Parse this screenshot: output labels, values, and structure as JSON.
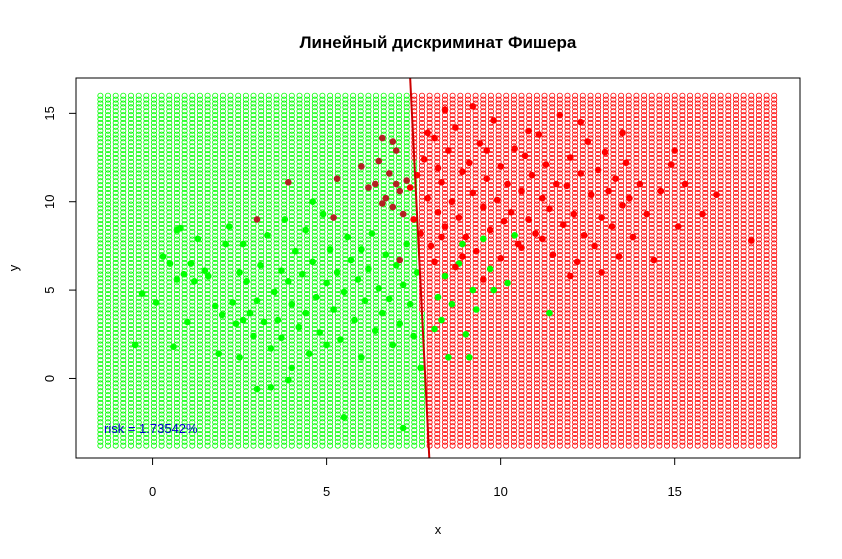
{
  "chart_data": {
    "type": "scatter",
    "title": "Линейный дискриминат Фишера",
    "xlabel": "x",
    "ylabel": "y",
    "xlim": [
      -2.2,
      18.6
    ],
    "ylim": [
      -4.5,
      17.0
    ],
    "xticks": [
      0,
      5,
      10,
      15
    ],
    "yticks": [
      0,
      5,
      10,
      15
    ],
    "grid_x": {
      "from": -1.5,
      "to": 18.0,
      "step": 0.22
    },
    "grid_y": {
      "from": -3.8,
      "to": 16.2,
      "step": 0.22
    },
    "boundary": {
      "x1": 7.4,
      "y1": 17.0,
      "x2": 7.95,
      "y2": -4.5
    },
    "annotation": "risk = 1.73542%",
    "colors": {
      "class1": "#00ff00",
      "class2": "#ff0000",
      "misclassified": "#b22222",
      "annotation": "#0000cd",
      "boundary": "#cc0000"
    },
    "series": [
      {
        "class": 1,
        "color": "#00ff00",
        "points": [
          [
            -0.5,
            1.9
          ],
          [
            -0.3,
            4.8
          ],
          [
            0.1,
            4.3
          ],
          [
            0.3,
            6.9
          ],
          [
            0.5,
            6.5
          ],
          [
            0.6,
            1.8
          ],
          [
            0.7,
            8.4
          ],
          [
            0.7,
            5.6
          ],
          [
            0.8,
            8.5
          ],
          [
            0.9,
            5.9
          ],
          [
            1.0,
            3.2
          ],
          [
            1.1,
            6.5
          ],
          [
            1.2,
            5.5
          ],
          [
            1.3,
            7.9
          ],
          [
            1.5,
            6.1
          ],
          [
            1.6,
            5.8
          ],
          [
            1.8,
            4.1
          ],
          [
            1.9,
            1.4
          ],
          [
            2.0,
            3.6
          ],
          [
            2.1,
            7.6
          ],
          [
            2.2,
            8.6
          ],
          [
            2.3,
            4.3
          ],
          [
            2.4,
            3.1
          ],
          [
            2.5,
            6.0
          ],
          [
            2.5,
            1.2
          ],
          [
            2.6,
            7.6
          ],
          [
            2.7,
            5.5
          ],
          [
            2.8,
            3.7
          ],
          [
            2.9,
            2.4
          ],
          [
            3.0,
            4.4
          ],
          [
            3.0,
            -0.6
          ],
          [
            3.1,
            6.4
          ],
          [
            3.2,
            3.2
          ],
          [
            3.3,
            8.1
          ],
          [
            3.4,
            1.7
          ],
          [
            3.4,
            -0.5
          ],
          [
            3.5,
            4.9
          ],
          [
            3.6,
            3.3
          ],
          [
            3.7,
            6.1
          ],
          [
            3.7,
            2.3
          ],
          [
            3.8,
            9.0
          ],
          [
            3.9,
            5.5
          ],
          [
            4.0,
            4.2
          ],
          [
            4.0,
            0.6
          ],
          [
            4.1,
            7.2
          ],
          [
            4.2,
            2.9
          ],
          [
            4.3,
            5.9
          ],
          [
            4.4,
            3.7
          ],
          [
            4.4,
            8.4
          ],
          [
            4.5,
            1.4
          ],
          [
            4.6,
            6.6
          ],
          [
            4.7,
            4.6
          ],
          [
            4.8,
            2.6
          ],
          [
            4.9,
            9.3
          ],
          [
            5.0,
            5.4
          ],
          [
            5.0,
            1.9
          ],
          [
            5.1,
            7.3
          ],
          [
            5.2,
            3.9
          ],
          [
            5.3,
            6.0
          ],
          [
            5.3,
            11.3
          ],
          [
            5.4,
            2.2
          ],
          [
            5.5,
            4.9
          ],
          [
            5.6,
            8.0
          ],
          [
            5.7,
            6.7
          ],
          [
            5.8,
            3.3
          ],
          [
            5.9,
            5.6
          ],
          [
            6.0,
            7.3
          ],
          [
            6.0,
            1.2
          ],
          [
            6.1,
            4.4
          ],
          [
            6.2,
            6.2
          ],
          [
            6.3,
            8.2
          ],
          [
            6.4,
            2.7
          ],
          [
            6.5,
            5.1
          ],
          [
            6.6,
            3.7
          ],
          [
            6.7,
            7.0
          ],
          [
            6.8,
            4.5
          ],
          [
            6.9,
            1.9
          ],
          [
            7.0,
            6.4
          ],
          [
            7.1,
            3.1
          ],
          [
            7.2,
            5.3
          ],
          [
            7.2,
            -2.8
          ],
          [
            7.3,
            7.6
          ],
          [
            7.4,
            4.2
          ],
          [
            7.5,
            2.4
          ],
          [
            7.6,
            6.0
          ],
          [
            7.7,
            0.6
          ],
          [
            5.5,
            -2.2
          ],
          [
            3.9,
            -0.1
          ],
          [
            4.6,
            10.0
          ],
          [
            2.6,
            3.3
          ],
          [
            8.1,
            2.8
          ],
          [
            8.2,
            4.6
          ],
          [
            8.3,
            3.3
          ],
          [
            8.4,
            5.8
          ],
          [
            8.5,
            1.2
          ],
          [
            8.6,
            4.2
          ],
          [
            8.8,
            6.5
          ],
          [
            9.0,
            2.5
          ],
          [
            9.1,
            1.2
          ],
          [
            9.2,
            5.0
          ],
          [
            9.3,
            3.9
          ],
          [
            9.5,
            7.9
          ],
          [
            9.8,
            5.0
          ],
          [
            10.2,
            5.4
          ],
          [
            10.4,
            8.1
          ],
          [
            11.4,
            3.7
          ],
          [
            8.9,
            7.6
          ],
          [
            9.7,
            6.2
          ]
        ]
      },
      {
        "class": 2,
        "color": "#ff0000",
        "points": [
          [
            7.4,
            10.8
          ],
          [
            7.5,
            9.0
          ],
          [
            7.6,
            11.5
          ],
          [
            7.7,
            8.2
          ],
          [
            7.8,
            12.4
          ],
          [
            7.9,
            10.2
          ],
          [
            8.0,
            7.5
          ],
          [
            8.1,
            13.6
          ],
          [
            8.2,
            9.4
          ],
          [
            8.3,
            11.1
          ],
          [
            8.4,
            8.6
          ],
          [
            8.5,
            12.9
          ],
          [
            8.6,
            10.0
          ],
          [
            8.7,
            14.2
          ],
          [
            8.8,
            9.1
          ],
          [
            8.9,
            11.7
          ],
          [
            9.0,
            8.0
          ],
          [
            9.1,
            12.2
          ],
          [
            9.2,
            10.5
          ],
          [
            9.3,
            7.2
          ],
          [
            9.4,
            13.3
          ],
          [
            9.5,
            9.7
          ],
          [
            9.6,
            11.3
          ],
          [
            9.7,
            8.4
          ],
          [
            9.8,
            14.6
          ],
          [
            9.9,
            10.1
          ],
          [
            10.0,
            12.0
          ],
          [
            10.1,
            8.9
          ],
          [
            10.2,
            11.0
          ],
          [
            10.3,
            9.4
          ],
          [
            10.4,
            13.0
          ],
          [
            10.5,
            7.6
          ],
          [
            10.6,
            10.6
          ],
          [
            10.7,
            12.6
          ],
          [
            10.8,
            9.0
          ],
          [
            10.9,
            11.5
          ],
          [
            11.0,
            8.2
          ],
          [
            11.1,
            13.8
          ],
          [
            11.2,
            10.2
          ],
          [
            11.3,
            12.1
          ],
          [
            11.4,
            9.6
          ],
          [
            11.5,
            7.0
          ],
          [
            11.6,
            11.0
          ],
          [
            11.7,
            14.9
          ],
          [
            11.8,
            8.7
          ],
          [
            11.9,
            10.9
          ],
          [
            12.0,
            12.5
          ],
          [
            12.1,
            9.3
          ],
          [
            12.2,
            6.6
          ],
          [
            12.3,
            11.6
          ],
          [
            12.4,
            8.1
          ],
          [
            12.5,
            13.4
          ],
          [
            12.6,
            10.4
          ],
          [
            12.7,
            7.5
          ],
          [
            12.8,
            11.8
          ],
          [
            12.9,
            9.1
          ],
          [
            13.0,
            12.8
          ],
          [
            13.1,
            10.6
          ],
          [
            13.2,
            8.6
          ],
          [
            13.3,
            11.3
          ],
          [
            13.4,
            6.9
          ],
          [
            13.5,
            9.8
          ],
          [
            13.6,
            12.2
          ],
          [
            13.7,
            10.2
          ],
          [
            13.8,
            8.0
          ],
          [
            14.0,
            11.0
          ],
          [
            14.2,
            9.3
          ],
          [
            14.4,
            6.7
          ],
          [
            14.6,
            10.6
          ],
          [
            14.9,
            12.1
          ],
          [
            15.1,
            8.6
          ],
          [
            15.3,
            11.0
          ],
          [
            15.8,
            9.3
          ],
          [
            16.2,
            10.4
          ],
          [
            17.2,
            7.8
          ],
          [
            8.4,
            15.2
          ],
          [
            9.2,
            15.4
          ],
          [
            8.1,
            6.6
          ],
          [
            8.7,
            6.3
          ],
          [
            9.5,
            5.6
          ],
          [
            10.0,
            6.8
          ],
          [
            10.6,
            7.4
          ],
          [
            11.2,
            7.9
          ],
          [
            12.0,
            5.8
          ],
          [
            12.9,
            6.0
          ],
          [
            8.3,
            8.0
          ],
          [
            8.9,
            6.9
          ],
          [
            9.6,
            12.9
          ],
          [
            10.8,
            14.0
          ],
          [
            8.2,
            11.9
          ],
          [
            12.3,
            14.5
          ],
          [
            13.5,
            13.9
          ],
          [
            7.9,
            13.9
          ],
          [
            15.0,
            12.9
          ]
        ]
      },
      {
        "class": "misclassified",
        "color": "#b22222",
        "points": [
          [
            3.9,
            11.1
          ],
          [
            3.0,
            9.0
          ],
          [
            5.2,
            9.1
          ],
          [
            5.3,
            11.3
          ],
          [
            6.2,
            10.8
          ],
          [
            6.5,
            12.3
          ],
          [
            6.6,
            13.6
          ],
          [
            6.7,
            10.2
          ],
          [
            6.8,
            11.6
          ],
          [
            6.9,
            9.7
          ],
          [
            7.0,
            12.9
          ],
          [
            7.1,
            10.6
          ],
          [
            6.4,
            11.0
          ],
          [
            6.9,
            13.4
          ],
          [
            7.2,
            9.3
          ],
          [
            7.1,
            6.7
          ],
          [
            6.6,
            9.9
          ],
          [
            6.0,
            12.0
          ],
          [
            7.3,
            11.2
          ],
          [
            7.0,
            11.0
          ]
        ]
      }
    ]
  }
}
